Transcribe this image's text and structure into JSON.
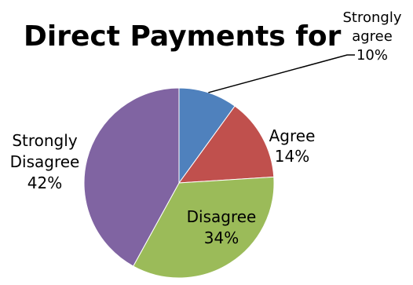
{
  "chart_data": {
    "type": "pie",
    "title": "Direct Payments for",
    "categories": [
      "Strongly agree",
      "Agree",
      "Disagree",
      "Strongly Disagree"
    ],
    "values": [
      10,
      14,
      34,
      42
    ],
    "unit": "%",
    "colors": [
      "#4f81bd",
      "#c0504d",
      "#9bbb59",
      "#8064a2"
    ],
    "labels": [
      {
        "lines": [
          "Strongly",
          "agree"
        ],
        "pct": "10%"
      },
      {
        "lines": [
          "Agree"
        ],
        "pct": "14%"
      },
      {
        "lines": [
          "Disagree"
        ],
        "pct": "34%"
      },
      {
        "lines": [
          "Strongly",
          "Disagree"
        ],
        "pct": "42%"
      }
    ],
    "legend": "none",
    "start": "12 o'clock, clockwise"
  }
}
